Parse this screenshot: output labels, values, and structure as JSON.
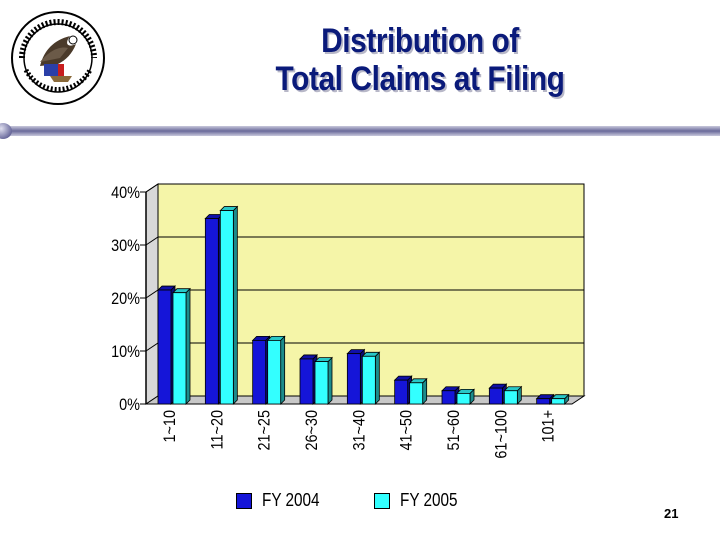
{
  "slide": {
    "title_line1": "Distribution of",
    "title_line2": "Total Claims at Filing",
    "page_number": "21"
  },
  "colors": {
    "title": "#0a1a7a",
    "plot_background": "#f5f5a8",
    "fy2004_bar": "#1515d8",
    "fy2005_bar": "#33ffff"
  },
  "chart_data": {
    "type": "bar",
    "title": "Distribution of Total Claims at Filing",
    "categories": [
      "1~10",
      "11~20",
      "21~25",
      "26~30",
      "31~40",
      "41~50",
      "51~60",
      "61~100",
      "101+"
    ],
    "series": [
      {
        "name": "FY 2004",
        "values": [
          21.5,
          35.0,
          12.0,
          8.5,
          9.5,
          4.5,
          2.5,
          3.0,
          1.0
        ]
      },
      {
        "name": "FY 2005",
        "values": [
          21.0,
          36.5,
          12.0,
          8.0,
          9.0,
          4.0,
          2.0,
          2.5,
          1.0
        ]
      }
    ],
    "yticks": [
      "0%",
      "10%",
      "20%",
      "30%",
      "40%"
    ],
    "ylim": [
      0,
      40
    ],
    "xlabel": "",
    "ylabel": "",
    "grid": true,
    "legend": "bottom"
  }
}
